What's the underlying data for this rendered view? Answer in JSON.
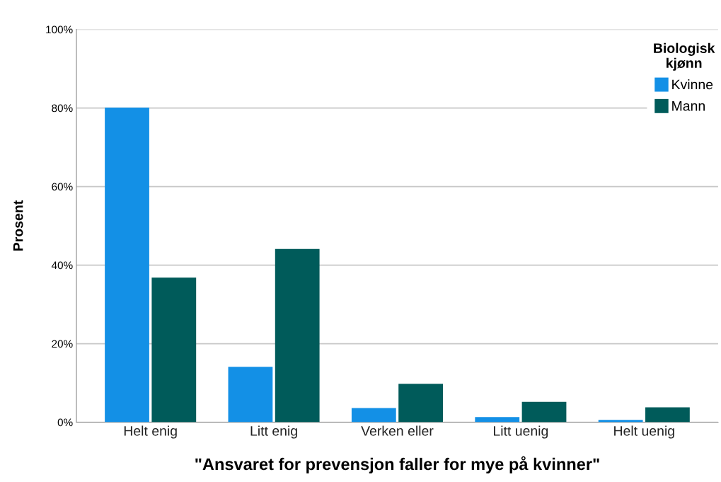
{
  "chart_data": {
    "type": "bar",
    "xlabel": "\"Ansvaret for prevensjon faller for mye på kvinner\"",
    "ylabel": "Prosent",
    "legend_title": "Biologisk\nkjønn",
    "categories": [
      "Helt enig",
      "Litt enig",
      "Verken eller",
      "Litt uenig",
      "Helt uenig"
    ],
    "series": [
      {
        "name": "Kvinne",
        "color": "#1390e6",
        "values": [
          80.1,
          14.1,
          3.6,
          1.3,
          0.6
        ]
      },
      {
        "name": "Mann",
        "color": "#005b5a",
        "values": [
          36.8,
          44.1,
          9.8,
          5.2,
          3.8
        ]
      }
    ],
    "ylim": [
      0,
      100
    ],
    "yticks": [
      {
        "value": 0,
        "label": "0%"
      },
      {
        "value": 20,
        "label": "20%"
      },
      {
        "value": 40,
        "label": "40%"
      },
      {
        "value": 60,
        "label": "60%"
      },
      {
        "value": 80,
        "label": "80%"
      },
      {
        "value": 100,
        "label": "100%"
      }
    ],
    "grid": "y",
    "legend": "top right"
  }
}
